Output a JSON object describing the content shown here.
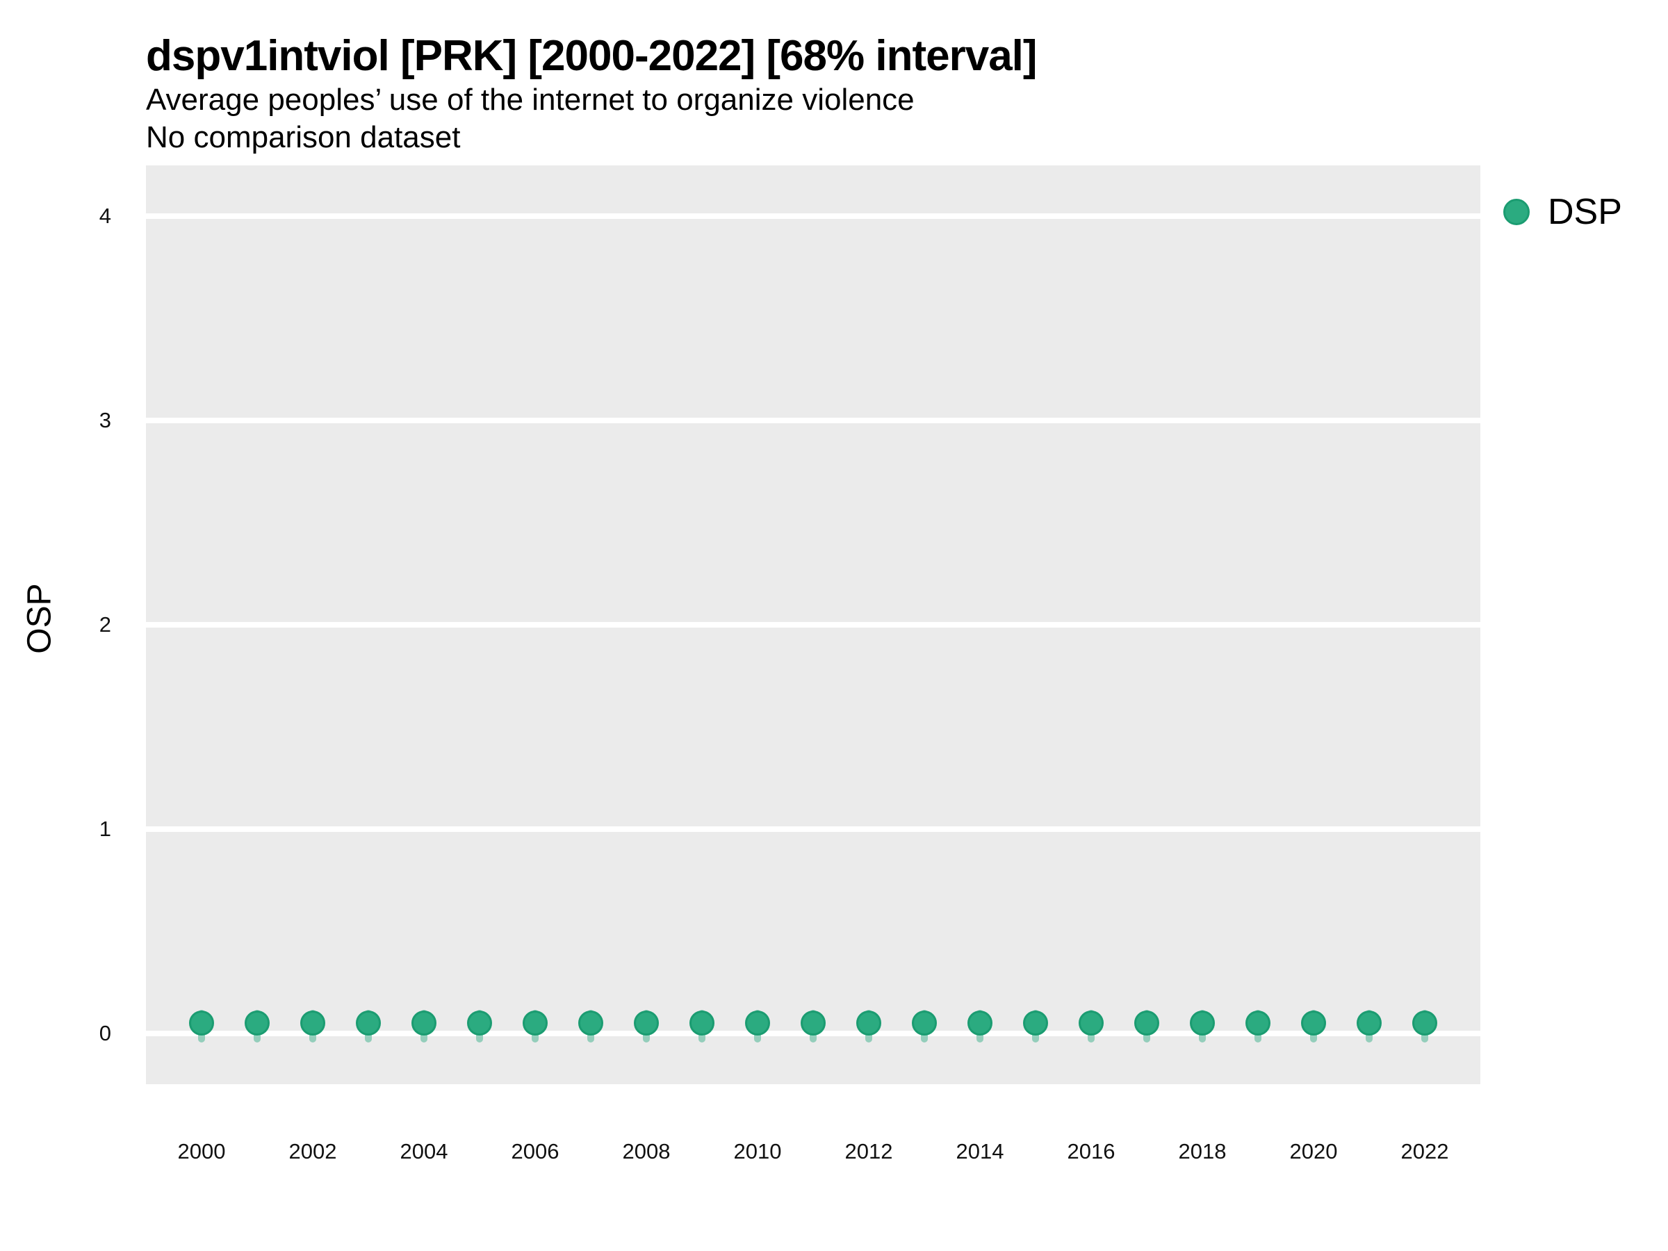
{
  "header": {
    "title": "dspv1intviol [PRK] [2000-2022] [68% interval]",
    "subtitle": "Average peoples’ use of the internet to organize violence",
    "comparison_note": "No comparison dataset"
  },
  "axes": {
    "y_label": "OSP",
    "y_ticks": [
      0,
      1,
      2,
      3,
      4
    ],
    "x_ticks": [
      2000,
      2002,
      2004,
      2006,
      2008,
      2010,
      2012,
      2014,
      2016,
      2018,
      2020,
      2022
    ]
  },
  "legend": {
    "position": "right",
    "items": [
      {
        "label": "DSP",
        "marker": "circle-icon",
        "color": "#2bab80"
      }
    ]
  },
  "colors": {
    "panel_background": "#ebebeb",
    "gridline": "#ffffff",
    "point_fill": "#2bab80",
    "point_stroke": "#1b9c71",
    "interval_fill": "rgba(43,171,128,0.45)",
    "text": "#000000"
  },
  "chart_data": {
    "type": "scatter",
    "title": "dspv1intviol [PRK] [2000-2022] [68% interval]",
    "subtitle": "Average peoples’ use of the internet to organize violence",
    "note": "No comparison dataset",
    "xlabel": "",
    "ylabel": "OSP",
    "xlim": [
      1999,
      2023
    ],
    "ylim": [
      -0.25,
      4.25
    ],
    "y_gridlines": [
      0,
      1,
      2,
      3,
      4
    ],
    "grid": "horizontal-only",
    "legend_position": "right",
    "interval_level": "68%",
    "x": [
      2000,
      2001,
      2002,
      2003,
      2004,
      2005,
      2006,
      2007,
      2008,
      2009,
      2010,
      2011,
      2012,
      2013,
      2014,
      2015,
      2016,
      2017,
      2018,
      2019,
      2020,
      2021,
      2022
    ],
    "series": [
      {
        "name": "DSP",
        "values": [
          0.05,
          0.05,
          0.05,
          0.05,
          0.05,
          0.05,
          0.05,
          0.05,
          0.05,
          0.05,
          0.05,
          0.05,
          0.05,
          0.05,
          0.05,
          0.05,
          0.05,
          0.05,
          0.05,
          0.05,
          0.05,
          0.05,
          0.05
        ],
        "interval_low": [
          -0.045,
          -0.045,
          -0.045,
          -0.045,
          -0.045,
          -0.045,
          -0.045,
          -0.045,
          -0.045,
          -0.045,
          -0.045,
          -0.045,
          -0.045,
          -0.045,
          -0.045,
          -0.045,
          -0.045,
          -0.045,
          -0.045,
          -0.045,
          -0.045,
          -0.045,
          -0.045
        ],
        "interval_high": [
          0.115,
          0.115,
          0.115,
          0.115,
          0.115,
          0.115,
          0.115,
          0.115,
          0.115,
          0.115,
          0.115,
          0.115,
          0.115,
          0.115,
          0.115,
          0.115,
          0.115,
          0.115,
          0.115,
          0.115,
          0.115,
          0.115,
          0.115
        ]
      }
    ]
  }
}
